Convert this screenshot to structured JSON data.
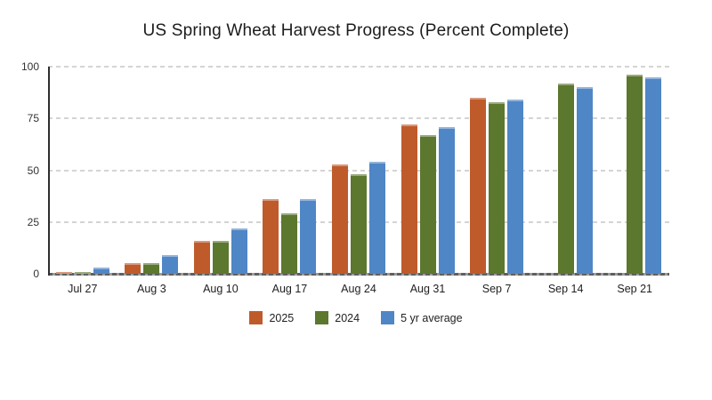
{
  "title": "US Spring Wheat Harvest Progress (Percent Complete)",
  "chart_data": {
    "type": "bar",
    "title": "US Spring Wheat Harvest Progress (Percent Complete)",
    "categories": [
      "Jul 27",
      "Aug 3",
      "Aug 10",
      "Aug 17",
      "Aug 24",
      "Aug 31",
      "Sep 7",
      "Sep 14",
      "Sep 21"
    ],
    "series": [
      {
        "name": "2025",
        "color": "#BF5B2B",
        "values": [
          1,
          5,
          16,
          36,
          53,
          72,
          85,
          null,
          null
        ]
      },
      {
        "name": "2024",
        "color": "#5C772E",
        "values": [
          1,
          5,
          16,
          29,
          48,
          67,
          83,
          92,
          96
        ]
      },
      {
        "name": "5 yr average",
        "color": "#4F86C6",
        "values": [
          3,
          9,
          22,
          36,
          54,
          71,
          84,
          90,
          95
        ]
      }
    ],
    "xlabel": "",
    "ylabel": "",
    "ylim": [
      0,
      100
    ],
    "yticks": [
      0,
      25,
      50,
      75,
      100
    ],
    "grid": "horizontal-dashed",
    "legend_position": "bottom",
    "axis_colors": {
      "gridline": "#d4d4d4",
      "zero_line": "#5f5f5f",
      "y_axis": "#2e2e2e",
      "text": "#333333"
    }
  }
}
